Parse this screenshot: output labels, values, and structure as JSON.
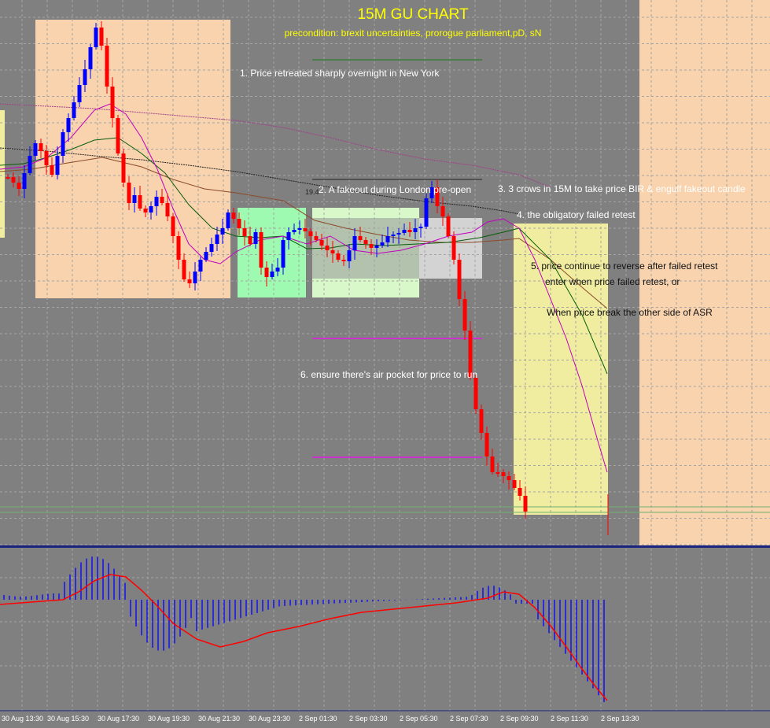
{
  "chart_data": {
    "type": "candlestick",
    "title": "15M GU CHART",
    "subtitle": "precondition: brexit uncertainties, prorogue parliament,pD, sN",
    "annotations": [
      "1. Price retreated sharply overnight in New York",
      "2. A fakeout during London pre-open",
      "3. 3 crows in 15M to take price BIR & engulf fakeout candle",
      "4. the obligatory failed retest",
      "5. price continue to reverse after failed retest",
      "enter when price failed retest, or",
      "When price break the other side of ASR",
      "6. ensure there's air pocket for price to run"
    ],
    "small_label": "19.4",
    "x_tick_labels": [
      "30 Aug 13:30",
      "30 Aug 15:30",
      "30 Aug 17:30",
      "30 Aug 19:30",
      "30 Aug 21:30",
      "30 Aug 23:30",
      "2 Sep 01:30",
      "2 Sep 03:30",
      "2 Sep 05:30",
      "2 Sep 07:30",
      "2 Sep 09:30",
      "2 Sep 11:30",
      "2 Sep 13:30"
    ],
    "colors": {
      "background": "#808080",
      "bull_candle": "#0000ff",
      "bear_candle": "#ff0000",
      "title": "#ffff00",
      "annotation": "#ffffff",
      "ny_box": "#f8d3ae",
      "asia_box": "#9dfab0",
      "london_box": "#d9f8c9",
      "preopen_box": "#d3d3d3",
      "entry_box": "#f0eda0",
      "air_pocket_line": "#cc33cc",
      "macd_signal": "#ff0000",
      "macd_hist": "#0000ff"
    },
    "oscillator": {
      "type": "macd",
      "series": [
        "histogram",
        "signal"
      ]
    }
  }
}
